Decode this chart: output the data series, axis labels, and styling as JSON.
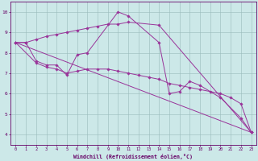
{
  "xlabel": "Windchill (Refroidissement éolien,°C)",
  "bg_color": "#cce8e8",
  "line_color": "#993399",
  "grid_color": "#99bbbb",
  "tick_color": "#660066",
  "ylim": [
    3.5,
    10.5
  ],
  "xlim": [
    -0.5,
    23.5
  ],
  "yticks": [
    4,
    5,
    6,
    7,
    8,
    9,
    10
  ],
  "xticks": [
    0,
    1,
    2,
    3,
    4,
    5,
    6,
    7,
    8,
    9,
    10,
    11,
    12,
    13,
    14,
    15,
    16,
    17,
    18,
    19,
    20,
    21,
    22,
    23
  ],
  "line1_x": [
    0,
    1,
    2,
    3,
    4,
    5,
    6,
    7,
    10,
    11,
    14,
    15,
    16,
    17,
    18,
    20,
    22,
    23
  ],
  "line1_y": [
    8.5,
    8.5,
    7.6,
    7.4,
    7.4,
    6.9,
    7.9,
    8.0,
    10.0,
    9.8,
    8.5,
    6.0,
    6.1,
    6.6,
    6.4,
    5.8,
    4.8,
    4.1
  ],
  "line2_x": [
    0,
    2,
    3,
    4,
    5,
    6,
    7,
    8,
    9,
    10,
    11,
    12,
    13,
    14,
    15,
    16,
    17,
    18,
    19,
    20,
    21,
    22,
    23
  ],
  "line2_y": [
    8.5,
    7.5,
    7.3,
    7.2,
    7.0,
    7.1,
    7.2,
    7.2,
    7.2,
    7.1,
    7.0,
    6.9,
    6.8,
    6.7,
    6.5,
    6.4,
    6.3,
    6.2,
    6.1,
    6.0,
    5.8,
    5.5,
    4.1
  ],
  "line3_x": [
    0,
    1,
    2,
    3,
    4,
    5,
    6,
    7,
    8,
    9,
    10,
    11,
    14,
    23
  ],
  "line3_y": [
    8.5,
    8.5,
    8.65,
    8.8,
    8.9,
    9.0,
    9.1,
    9.2,
    9.3,
    9.4,
    9.4,
    9.5,
    9.35,
    4.1
  ],
  "line4_x": [
    0,
    23
  ],
  "line4_y": [
    8.5,
    4.1
  ]
}
